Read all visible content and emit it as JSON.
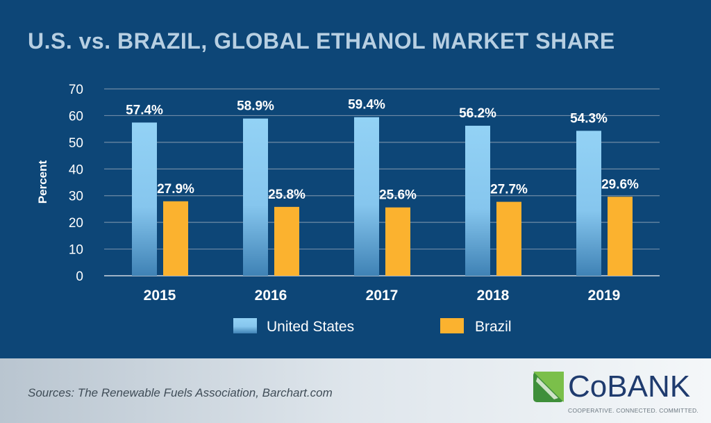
{
  "chart_data": {
    "type": "bar",
    "title": "U.S. vs. BRAZIL, GLOBAL ETHANOL MARKET SHARE",
    "ylabel": "Percent",
    "xlabel": "",
    "ylim": [
      0,
      70
    ],
    "yticks": [
      "0",
      "10",
      "20",
      "30",
      "40",
      "50",
      "60",
      "70"
    ],
    "grid": true,
    "legend_placement": "bottom",
    "categories": [
      "2015",
      "2016",
      "2017",
      "2018",
      "2019"
    ],
    "series": [
      {
        "name": "United States",
        "color": "#8fcdf2",
        "values": [
          57.4,
          58.9,
          59.4,
          56.2,
          54.3
        ],
        "labels": [
          "57.4%",
          "58.9%",
          "59.4%",
          "56.2%",
          "54.3%"
        ]
      },
      {
        "name": "Brazil",
        "color": "#fbb22f",
        "values": [
          27.9,
          25.8,
          25.6,
          27.7,
          29.6
        ],
        "labels": [
          "27.9%",
          "25.8%",
          "25.6%",
          "27.7%",
          "29.6%"
        ]
      }
    ]
  },
  "footer": {
    "source": "Sources: The Renewable Fuels Association, Barchart.com",
    "logo": {
      "name": "CoBANK",
      "tagline": "COOPERATIVE. CONNECTED. COMMITTED."
    }
  },
  "colors": {
    "background": "#0d4677",
    "grid": "#6f8ba6",
    "text": "#ffffff"
  }
}
